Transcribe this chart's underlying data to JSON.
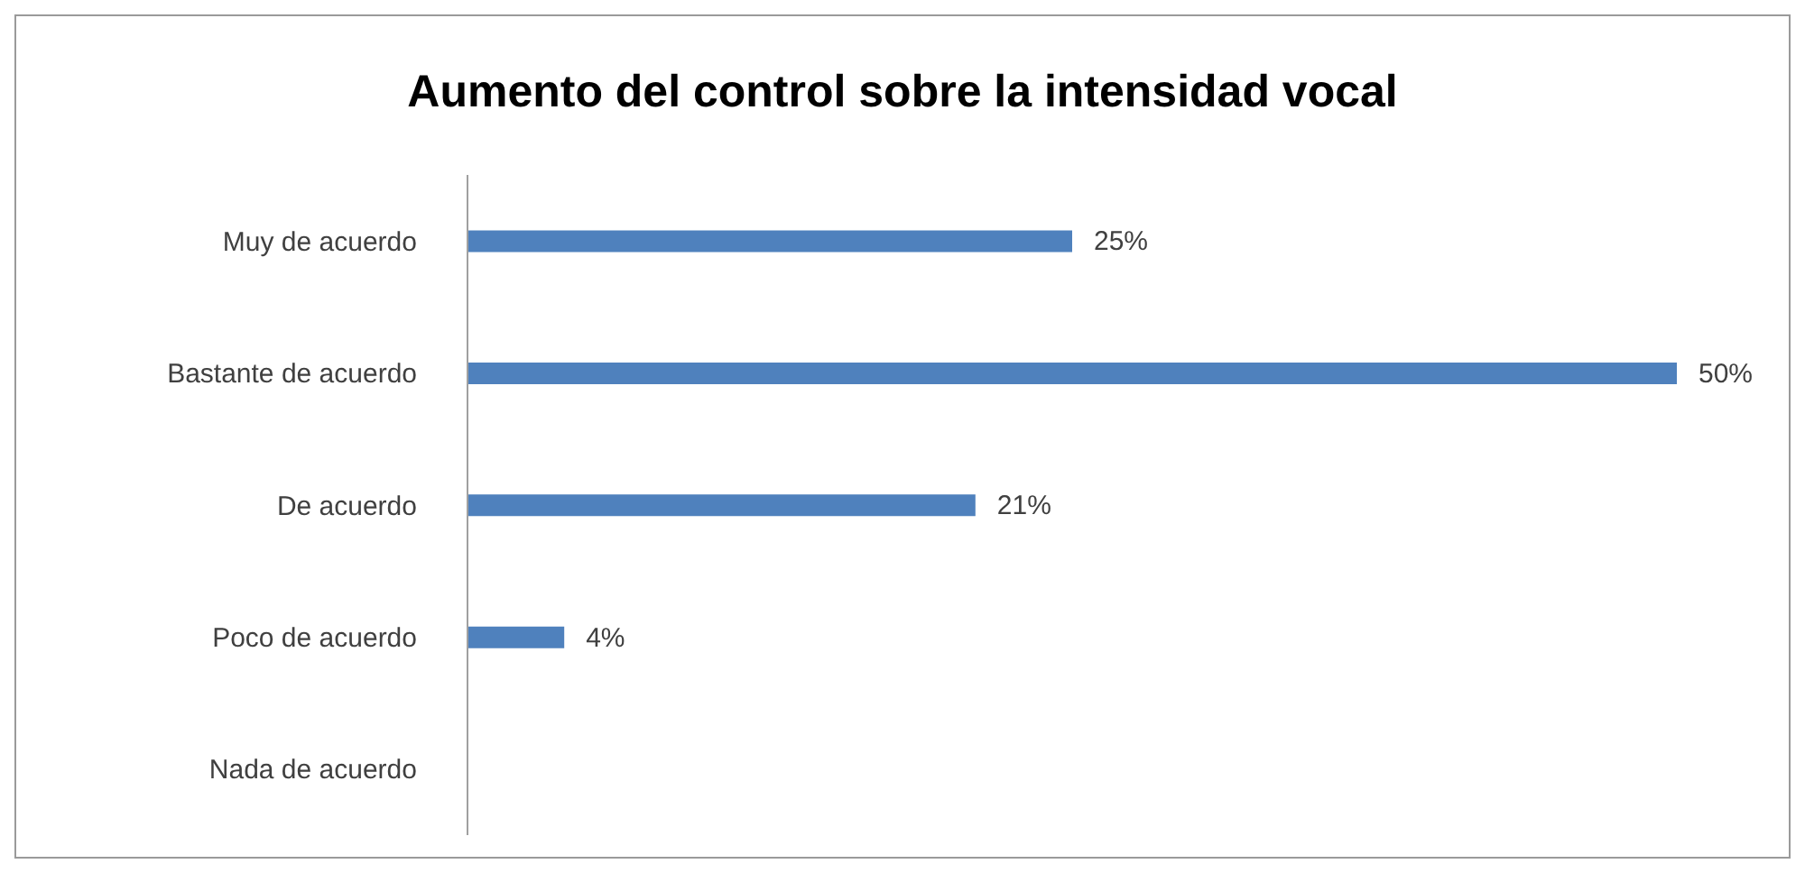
{
  "chart_data": {
    "type": "bar",
    "orientation": "horizontal",
    "title": "Aumento del control sobre la intensidad vocal",
    "categories": [
      "Muy de acuerdo",
      "Bastante de acuerdo",
      "De acuerdo",
      "Poco de acuerdo",
      "Nada de acuerdo"
    ],
    "values": [
      25,
      50,
      21,
      4,
      0
    ],
    "color": "#4f81bd",
    "value_labels": [
      "25%",
      "50%",
      "21%",
      "4%",
      null
    ]
  }
}
